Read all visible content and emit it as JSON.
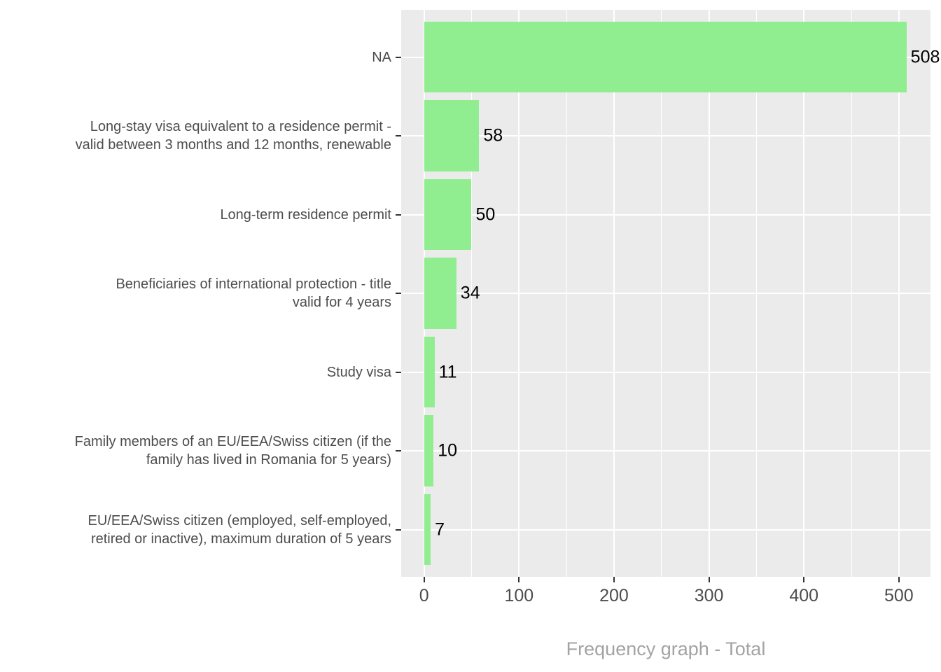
{
  "chart_data": {
    "type": "bar",
    "orientation": "horizontal",
    "title": "",
    "xlabel": "Frequency graph - Total",
    "ylabel": "",
    "categories": [
      [
        "NA"
      ],
      [
        "Long-stay visa equivalent to a residence permit -",
        "valid between 3 months and 12 months, renewable"
      ],
      [
        "Long-term residence permit"
      ],
      [
        "Beneficiaries of international protection - title",
        "valid for 4 years"
      ],
      [
        "Study visa"
      ],
      [
        "Family members of an EU/EEA/Swiss citizen (if the",
        "family has lived in Romania for 5 years)"
      ],
      [
        "EU/EEA/Swiss citizen (employed, self-employed,",
        "retired or inactive), maximum duration of 5 years"
      ]
    ],
    "values": [
      508,
      58,
      50,
      34,
      11,
      10,
      7
    ],
    "x_ticks": [
      0,
      100,
      200,
      300,
      400,
      500
    ],
    "xlim": [
      -24.1,
      533.3
    ],
    "grid": true,
    "legend_position": "none",
    "colors": {
      "bar": "#90EE90",
      "panel_bg": "#EBEBEB",
      "grid_major": "#FFFFFF",
      "grid_minor": "#FFFFFF",
      "axis_text": "#4D4D4D",
      "tick_mark": "#333333",
      "value_label": "#000000",
      "axis_title": "#A3A3A3",
      "background": "#FFFFFF"
    }
  }
}
